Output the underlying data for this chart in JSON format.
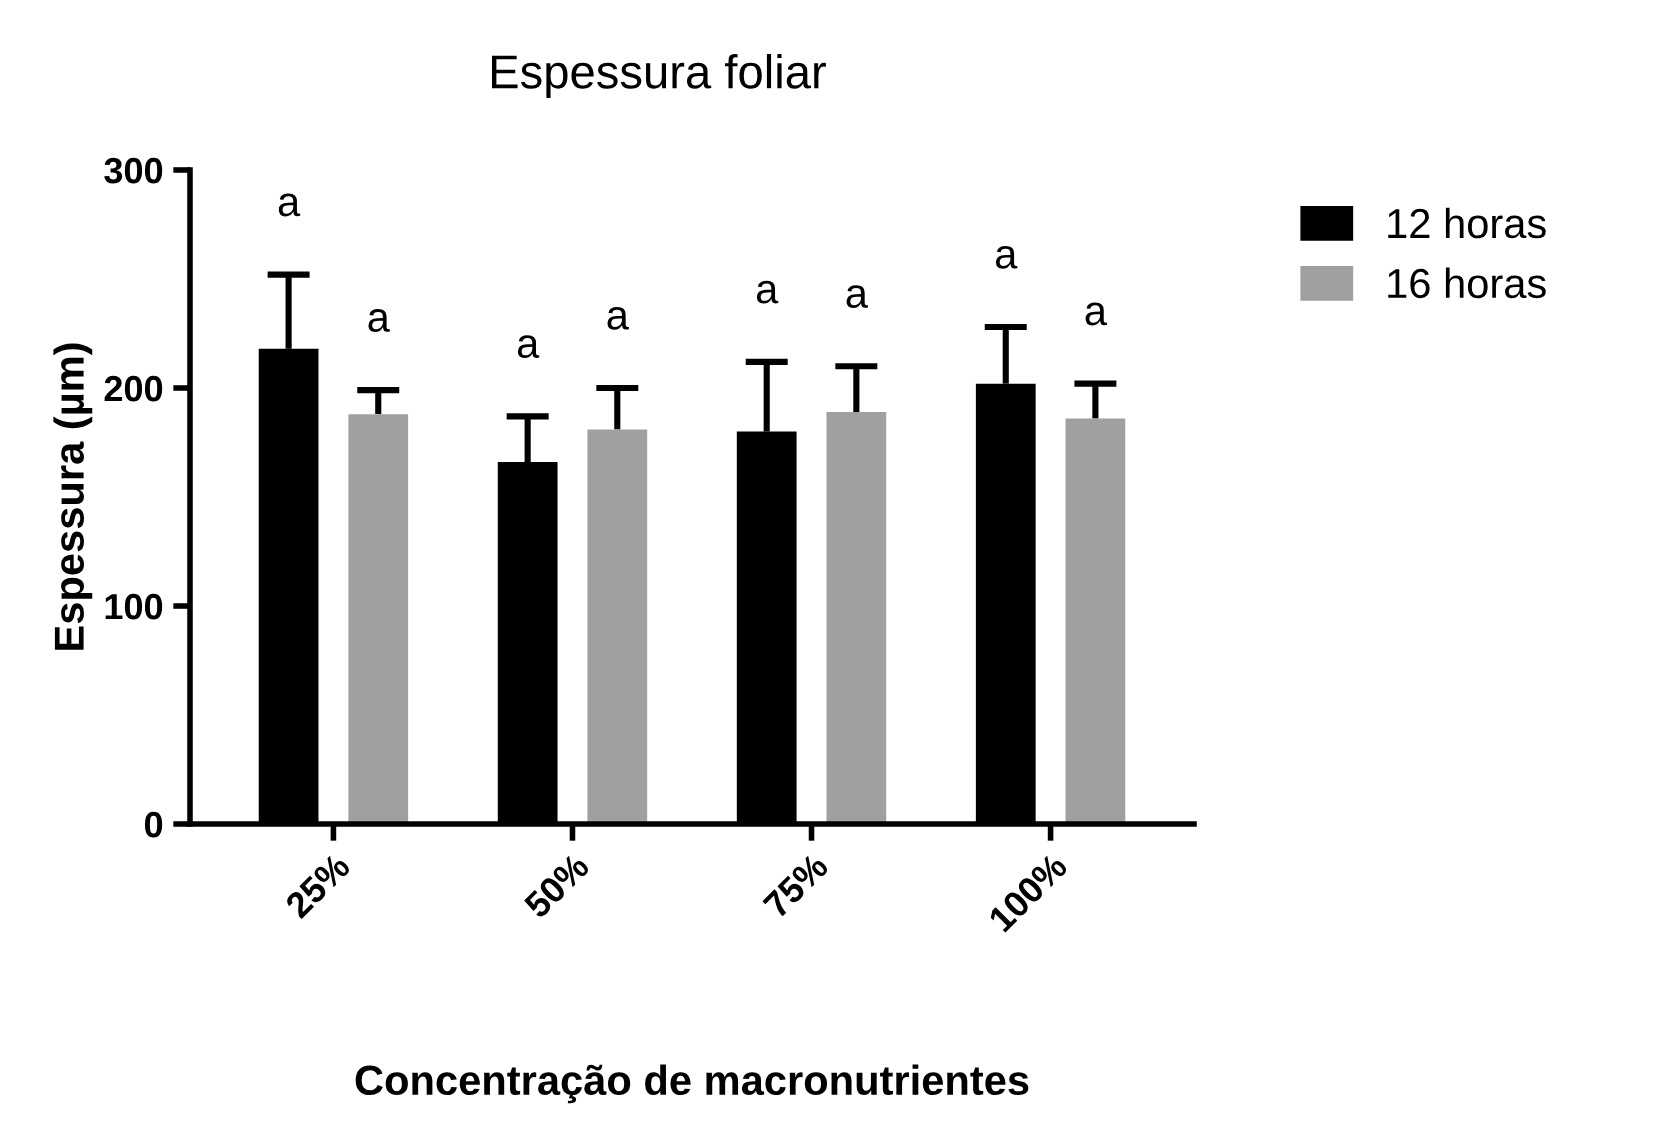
{
  "chart_data": {
    "type": "bar",
    "title": "Espessura foliar",
    "xlabel": "Concentração de macronutrientes",
    "ylabel": "Espessura (µm)",
    "categories": [
      "25%",
      "50%",
      "75%",
      "100%"
    ],
    "series": [
      {
        "name": "12 horas",
        "color": "#000000",
        "values": [
          218,
          166,
          180,
          202
        ],
        "value_labels": [
          "a",
          "a",
          "a",
          "a"
        ],
        "errors": [
          [
            218,
            252
          ],
          [
            166,
            187
          ],
          [
            180,
            212
          ],
          [
            202,
            228
          ]
        ]
      },
      {
        "name": "16 horas",
        "color": "#a0a0a2",
        "values": [
          188,
          181,
          189,
          186
        ],
        "value_labels": [
          "a",
          "a",
          "a",
          "a"
        ],
        "errors": [
          [
            188,
            199
          ],
          [
            181,
            200
          ],
          [
            189,
            210
          ],
          [
            186,
            202
          ]
        ]
      }
    ],
    "ylim": [
      0,
      300
    ],
    "yticks": [
      0,
      100,
      200,
      300
    ],
    "grid": false,
    "legend": "top right"
  }
}
